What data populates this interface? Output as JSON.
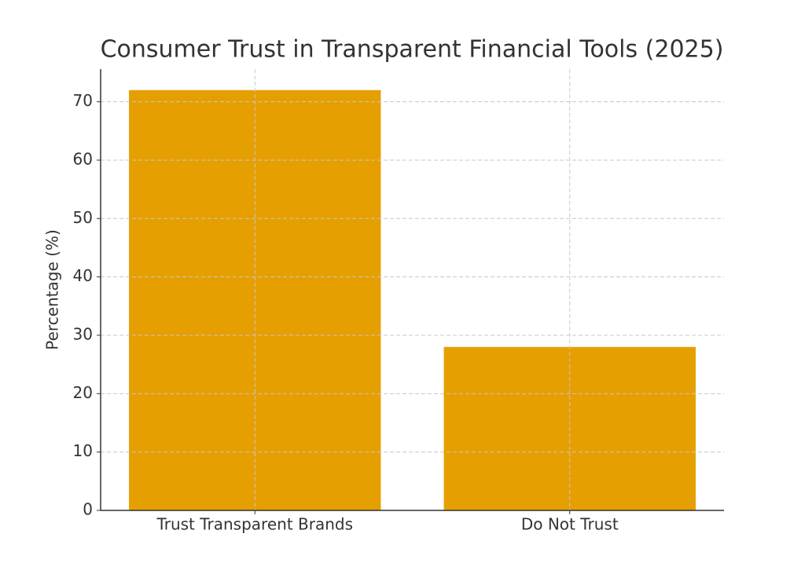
{
  "chart_data": {
    "type": "bar",
    "title": "Consumer Trust in Transparent Financial Tools (2025)",
    "y_label": "Percentage (%)",
    "categories": [
      "Trust Transparent Brands",
      "Do Not Trust"
    ],
    "values": [
      72,
      28
    ],
    "color": "#e69f00",
    "ylim": [
      0,
      75.6
    ],
    "yticks": [
      0,
      10,
      20,
      30,
      40,
      50,
      60,
      70
    ],
    "grid": true
  }
}
